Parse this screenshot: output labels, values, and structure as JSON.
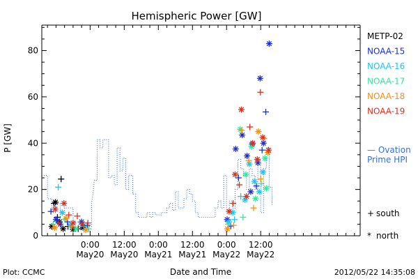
{
  "chart_data": {
    "type": "scatter",
    "title": "Hemispheric Power [GW]",
    "xlabel": "Date and Time",
    "ylabel": "P [GW]",
    "ylim": [
      0,
      91
    ],
    "xlim": [
      -17,
      95
    ],
    "x_unit_note": "",
    "yticks": [
      0,
      20,
      40,
      60,
      80
    ],
    "xticks": [
      {
        "x": 0,
        "time": "0:00",
        "date": "May20"
      },
      {
        "x": 12,
        "time": "12:00",
        "date": "May20"
      },
      {
        "x": 24,
        "time": "0:00",
        "date": "May21"
      },
      {
        "x": 36,
        "time": "12:00",
        "date": "May21"
      },
      {
        "x": 48,
        "time": "0:00",
        "date": "May22"
      },
      {
        "x": 60,
        "time": "12:00",
        "date": "May22"
      }
    ],
    "xtick_minor_step": 3,
    "ytick_minor_step": 5,
    "legend_position": "right",
    "series": [
      {
        "name": "METP-02",
        "color": "#000000",
        "points": [
          {
            "x": -12.7,
            "y": 14.0,
            "m": "plus"
          },
          {
            "x": -12.2,
            "y": 14.5,
            "m": "star"
          },
          {
            "x": -10.2,
            "y": 24.5,
            "m": "plus"
          },
          {
            "x": -11.5,
            "y": 8.0,
            "m": "plus"
          },
          {
            "x": -10.8,
            "y": 6.0,
            "m": "star"
          },
          {
            "x": -9.5,
            "y": 3.0,
            "m": "star"
          },
          {
            "x": -7.8,
            "y": 4.0,
            "m": "plus"
          },
          {
            "x": -6.0,
            "y": 2.8,
            "m": "star"
          },
          {
            "x": -4.2,
            "y": 3.0,
            "m": "plus"
          },
          {
            "x": -2.5,
            "y": 3.5,
            "m": "star"
          },
          {
            "x": -13.5,
            "y": 4.0,
            "m": "star"
          }
        ]
      },
      {
        "name": "NOAA-15",
        "color": "#1a2fcc",
        "points": [
          {
            "x": -13.8,
            "y": 10.5,
            "m": "plus"
          },
          {
            "x": -12.0,
            "y": 7.0,
            "m": "star"
          },
          {
            "x": -10.5,
            "y": 5.0,
            "m": "star"
          },
          {
            "x": -8.0,
            "y": 6.0,
            "m": "plus"
          },
          {
            "x": -3.0,
            "y": 6.0,
            "m": "star"
          },
          {
            "x": -1.0,
            "y": 4.5,
            "m": "plus"
          },
          {
            "x": 48.2,
            "y": 7.0,
            "m": "star"
          },
          {
            "x": 49.5,
            "y": 4.2,
            "m": "plus"
          },
          {
            "x": 51.2,
            "y": 37.5,
            "m": "star"
          },
          {
            "x": 52.2,
            "y": 25.0,
            "m": "plus"
          },
          {
            "x": 53.5,
            "y": 43.5,
            "m": "star"
          },
          {
            "x": 55.2,
            "y": 34.5,
            "m": "star"
          },
          {
            "x": 57.0,
            "y": 39.5,
            "m": "star"
          },
          {
            "x": 58.5,
            "y": 21.5,
            "m": "plus"
          },
          {
            "x": 59.0,
            "y": 31.5,
            "m": "star"
          },
          {
            "x": 59.8,
            "y": 68.0,
            "m": "star"
          },
          {
            "x": 60.5,
            "y": 37.0,
            "m": "plus"
          },
          {
            "x": 61.0,
            "y": 40.0,
            "m": "star"
          },
          {
            "x": 61.8,
            "y": 53.5,
            "m": "plus"
          },
          {
            "x": 63.0,
            "y": 83.0,
            "m": "star"
          },
          {
            "x": 56.5,
            "y": 19.0,
            "m": "star"
          }
        ]
      },
      {
        "name": "NOAA-16",
        "color": "#22c4e8",
        "points": [
          {
            "x": -11.2,
            "y": 21.0,
            "m": "plus"
          },
          {
            "x": -9.8,
            "y": 10.0,
            "m": "star"
          },
          {
            "x": -7.0,
            "y": 4.5,
            "m": "star"
          },
          {
            "x": -2.2,
            "y": 4.0,
            "m": "plus"
          },
          {
            "x": 48.8,
            "y": 6.0,
            "m": "star"
          },
          {
            "x": 50.2,
            "y": 10.0,
            "m": "star"
          },
          {
            "x": 50.8,
            "y": 7.0,
            "m": "plus"
          },
          {
            "x": 53.0,
            "y": 17.0,
            "m": "plus"
          },
          {
            "x": 56.0,
            "y": 31.0,
            "m": "star"
          },
          {
            "x": 57.8,
            "y": 23.5,
            "m": "star"
          },
          {
            "x": 59.5,
            "y": 19.0,
            "m": "star"
          },
          {
            "x": 60.8,
            "y": 27.5,
            "m": "star"
          },
          {
            "x": 54.5,
            "y": 15.5,
            "m": "star"
          }
        ]
      },
      {
        "name": "NOAA-17",
        "color": "#2ee89b",
        "points": [
          {
            "x": -13.0,
            "y": 5.0,
            "m": "plus"
          },
          {
            "x": -9.0,
            "y": 7.0,
            "m": "plus"
          },
          {
            "x": -5.0,
            "y": 3.0,
            "m": "star"
          },
          {
            "x": -0.5,
            "y": 3.0,
            "m": "plus"
          },
          {
            "x": 48.5,
            "y": 5.0,
            "m": "plus"
          },
          {
            "x": 52.8,
            "y": 46.0,
            "m": "star"
          },
          {
            "x": 53.8,
            "y": 8.0,
            "m": "plus"
          },
          {
            "x": 54.8,
            "y": 26.5,
            "m": "star"
          },
          {
            "x": 56.8,
            "y": 38.5,
            "m": "star"
          },
          {
            "x": 58.2,
            "y": 16.0,
            "m": "star"
          },
          {
            "x": 60.2,
            "y": 22.5,
            "m": "plus"
          },
          {
            "x": 61.5,
            "y": 33.5,
            "m": "star"
          },
          {
            "x": 62.0,
            "y": 20.5,
            "m": "star"
          }
        ]
      },
      {
        "name": "NOAA-18",
        "color": "#f09018",
        "points": [
          {
            "x": -12.5,
            "y": 3.5,
            "m": "star"
          },
          {
            "x": -8.5,
            "y": 7.5,
            "m": "star"
          },
          {
            "x": -6.5,
            "y": 4.0,
            "m": "plus"
          },
          {
            "x": -1.5,
            "y": 2.5,
            "m": "star"
          },
          {
            "x": 48.3,
            "y": 3.0,
            "m": "star"
          },
          {
            "x": 50.5,
            "y": 4.5,
            "m": "plus"
          },
          {
            "x": 53.3,
            "y": 45.5,
            "m": "plus"
          },
          {
            "x": 55.8,
            "y": 32.5,
            "m": "plus"
          },
          {
            "x": 57.5,
            "y": 12.0,
            "m": "plus"
          },
          {
            "x": 59.2,
            "y": 45.0,
            "m": "star"
          },
          {
            "x": 60.0,
            "y": 24.5,
            "m": "plus"
          },
          {
            "x": 61.2,
            "y": 42.0,
            "m": "plus"
          },
          {
            "x": 62.5,
            "y": 36.0,
            "m": "star"
          }
        ]
      },
      {
        "name": "NOAA-19",
        "color": "#d83020",
        "points": [
          {
            "x": -12.3,
            "y": 11.5,
            "m": "star"
          },
          {
            "x": -11.0,
            "y": 5.5,
            "m": "plus"
          },
          {
            "x": -9.2,
            "y": 14.0,
            "m": "star"
          },
          {
            "x": -7.5,
            "y": 9.0,
            "m": "plus"
          },
          {
            "x": -6.0,
            "y": 5.5,
            "m": "star"
          },
          {
            "x": -4.5,
            "y": 8.5,
            "m": "plus"
          },
          {
            "x": -2.8,
            "y": 5.0,
            "m": "star"
          },
          {
            "x": -0.8,
            "y": 5.5,
            "m": "plus"
          },
          {
            "x": 48.9,
            "y": 10.5,
            "m": "star"
          },
          {
            "x": 50.3,
            "y": 14.0,
            "m": "plus"
          },
          {
            "x": 51.0,
            "y": 26.5,
            "m": "star"
          },
          {
            "x": 52.5,
            "y": 22.0,
            "m": "plus"
          },
          {
            "x": 53.2,
            "y": 54.5,
            "m": "star"
          },
          {
            "x": 55.0,
            "y": 17.0,
            "m": "star"
          },
          {
            "x": 56.2,
            "y": 47.0,
            "m": "plus"
          },
          {
            "x": 57.2,
            "y": 40.0,
            "m": "star"
          },
          {
            "x": 58.8,
            "y": 33.0,
            "m": "star"
          },
          {
            "x": 59.9,
            "y": 62.0,
            "m": "plus"
          },
          {
            "x": 60.7,
            "y": 42.5,
            "m": "star"
          },
          {
            "x": 62.8,
            "y": 37.0,
            "m": "star"
          }
        ]
      }
    ],
    "ovation": {
      "name": "Ovation Prime HPI",
      "name_line1": "— Ovation",
      "name_line2": "Prime HPI",
      "color": "#3a6fd0",
      "points": [
        [
          -17,
          26
        ],
        [
          -15,
          26
        ],
        [
          -15,
          16
        ],
        [
          -13.5,
          16
        ],
        [
          -13.5,
          10
        ],
        [
          -12,
          10
        ],
        [
          -12,
          14
        ],
        [
          -10.5,
          14
        ],
        [
          -10.5,
          7
        ],
        [
          -9,
          7
        ],
        [
          -9,
          12
        ],
        [
          -6,
          12
        ],
        [
          -6,
          6
        ],
        [
          -4,
          6
        ],
        [
          -4,
          4
        ],
        [
          0.5,
          4
        ],
        [
          0.5,
          14
        ],
        [
          1,
          18
        ],
        [
          1.5,
          24
        ],
        [
          2.5,
          24
        ],
        [
          2.5,
          41.5
        ],
        [
          3.5,
          41.5
        ],
        [
          3.5,
          38
        ],
        [
          4.5,
          38
        ],
        [
          4.5,
          41.5
        ],
        [
          6.5,
          41.5
        ],
        [
          6.5,
          25
        ],
        [
          7.5,
          25
        ],
        [
          7.5,
          26
        ],
        [
          8.5,
          26
        ],
        [
          8.5,
          22
        ],
        [
          9.5,
          22
        ],
        [
          9.5,
          38
        ],
        [
          10.5,
          38
        ],
        [
          10.5,
          28
        ],
        [
          11.5,
          28
        ],
        [
          11.5,
          33.5
        ],
        [
          12.5,
          33.5
        ],
        [
          12.5,
          20
        ],
        [
          13.5,
          20
        ],
        [
          13.5,
          26
        ],
        [
          15,
          26
        ],
        [
          15,
          18
        ],
        [
          16,
          18
        ],
        [
          16,
          10
        ],
        [
          17,
          10
        ],
        [
          17,
          8
        ],
        [
          20,
          8
        ],
        [
          20,
          10
        ],
        [
          21,
          10
        ],
        [
          21,
          8
        ],
        [
          22,
          8
        ],
        [
          22,
          10
        ],
        [
          23,
          10
        ],
        [
          23,
          9
        ],
        [
          25,
          9
        ],
        [
          25,
          10
        ],
        [
          27,
          10
        ],
        [
          27,
          12
        ],
        [
          28,
          12
        ],
        [
          28,
          14
        ],
        [
          29,
          14
        ],
        [
          29,
          11
        ],
        [
          30,
          11
        ],
        [
          30,
          19
        ],
        [
          31,
          19
        ],
        [
          31,
          12
        ],
        [
          33,
          12
        ],
        [
          33,
          16
        ],
        [
          34,
          16
        ],
        [
          34,
          20
        ],
        [
          35,
          20
        ],
        [
          35,
          18
        ],
        [
          36,
          18
        ],
        [
          36,
          15
        ],
        [
          37,
          15
        ],
        [
          37,
          10
        ],
        [
          38,
          10
        ],
        [
          38,
          8
        ],
        [
          44,
          8
        ],
        [
          44,
          12
        ],
        [
          45,
          12
        ],
        [
          45,
          15
        ],
        [
          46,
          15
        ],
        [
          46,
          12
        ],
        [
          47,
          12
        ],
        [
          47,
          26
        ],
        [
          48,
          26
        ],
        [
          48,
          11
        ],
        [
          49,
          11
        ],
        [
          49,
          15
        ],
        [
          50,
          15
        ],
        [
          50,
          12
        ],
        [
          51,
          12
        ],
        [
          51,
          20
        ],
        [
          52,
          20
        ],
        [
          52,
          33
        ],
        [
          53,
          33
        ],
        [
          53,
          29
        ],
        [
          54,
          29
        ],
        [
          54,
          26
        ],
        [
          55,
          26
        ],
        [
          55,
          20
        ],
        [
          56,
          20
        ],
        [
          56,
          29
        ],
        [
          57,
          29
        ],
        [
          57,
          26
        ],
        [
          58,
          26
        ],
        [
          58,
          20
        ],
        [
          59,
          20
        ],
        [
          59,
          33
        ],
        [
          60,
          33
        ],
        [
          60,
          10
        ],
        [
          61,
          10
        ],
        [
          61,
          29
        ],
        [
          62,
          29
        ],
        [
          62,
          38
        ],
        [
          63,
          38
        ],
        [
          63,
          21
        ],
        [
          64,
          21
        ],
        [
          64,
          13
        ]
      ]
    },
    "marker_key": [
      {
        "symbol": "+",
        "label": "south"
      },
      {
        "symbol": "*",
        "label": "north"
      }
    ]
  },
  "footer": {
    "plot_credit": "Plot: CCMC",
    "timestamp": "2012/05/22  14:35:08"
  }
}
